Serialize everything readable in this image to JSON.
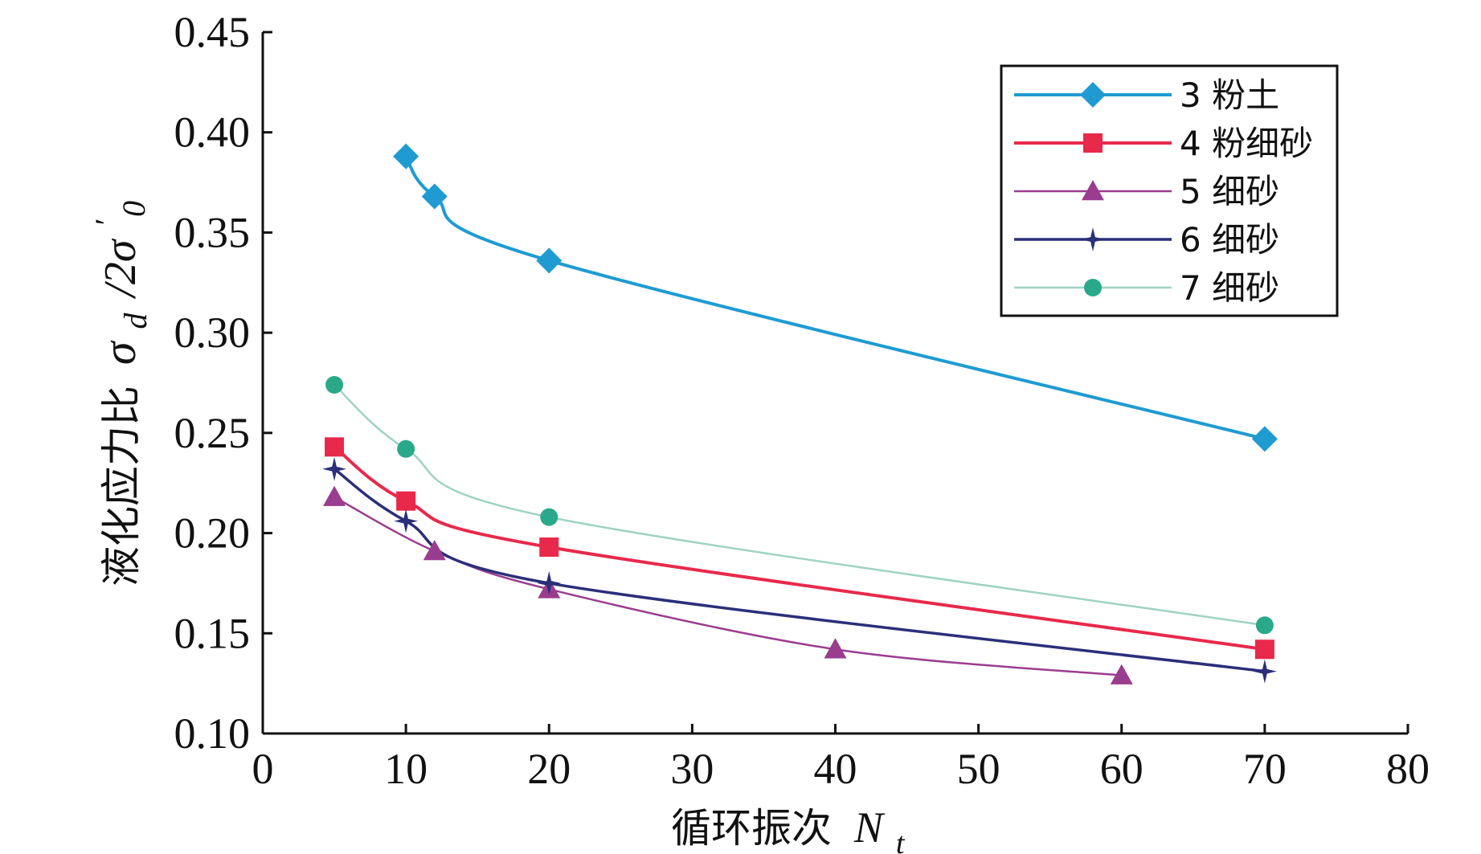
{
  "chart_data": {
    "type": "line",
    "title": "",
    "xlabel": "循环振次",
    "xlabel_symbol": "N",
    "xlabel_subscript": "t",
    "ylabel": "液化应力比",
    "ylabel_symbol_top": "σ",
    "ylabel_symbol_top_sub": "d",
    "ylabel_symbol_bottom": "/2σ",
    "ylabel_symbol_bottom_sup": "′",
    "ylabel_symbol_bottom_sub": "0",
    "xlim": [
      0,
      80
    ],
    "ylim": [
      0.1,
      0.45
    ],
    "x_ticks": [
      0,
      10,
      20,
      30,
      40,
      50,
      60,
      70,
      80
    ],
    "y_ticks": [
      0.1,
      0.15,
      0.2,
      0.25,
      0.3,
      0.35,
      0.4,
      0.45
    ],
    "x_tick_labels": [
      "0",
      "10",
      "20",
      "30",
      "40",
      "50",
      "60",
      "70",
      "80"
    ],
    "y_tick_labels": [
      "0.10",
      "0.15",
      "0.20",
      "0.25",
      "0.30",
      "0.35",
      "0.40",
      "0.45"
    ],
    "grid": false,
    "legend_position": "top-right",
    "series": [
      {
        "name": "3 粉土",
        "color": "#1f9bd2",
        "marker": "diamond",
        "x": [
          10,
          12,
          20,
          70
        ],
        "y": [
          0.388,
          0.368,
          0.336,
          0.247
        ]
      },
      {
        "name": "4 粉细砂",
        "color": "#e8294b",
        "marker": "square",
        "x": [
          5,
          10,
          20,
          70
        ],
        "y": [
          0.243,
          0.216,
          0.193,
          0.142
        ]
      },
      {
        "name": "5 细砂",
        "color": "#9b3d8f",
        "marker": "triangle",
        "x": [
          5,
          12,
          20,
          40,
          60
        ],
        "y": [
          0.218,
          0.191,
          0.172,
          0.142,
          0.129
        ]
      },
      {
        "name": "6 细砂",
        "color": "#2b2f7a",
        "marker": "star",
        "x": [
          5,
          10,
          20,
          70
        ],
        "y": [
          0.232,
          0.206,
          0.175,
          0.131
        ]
      },
      {
        "name": "7 细砂",
        "color": "#2aa98a",
        "line_color": "#9fd3c4",
        "marker": "circle",
        "x": [
          5,
          10,
          20,
          70
        ],
        "y": [
          0.274,
          0.242,
          0.208,
          0.154
        ]
      }
    ]
  }
}
